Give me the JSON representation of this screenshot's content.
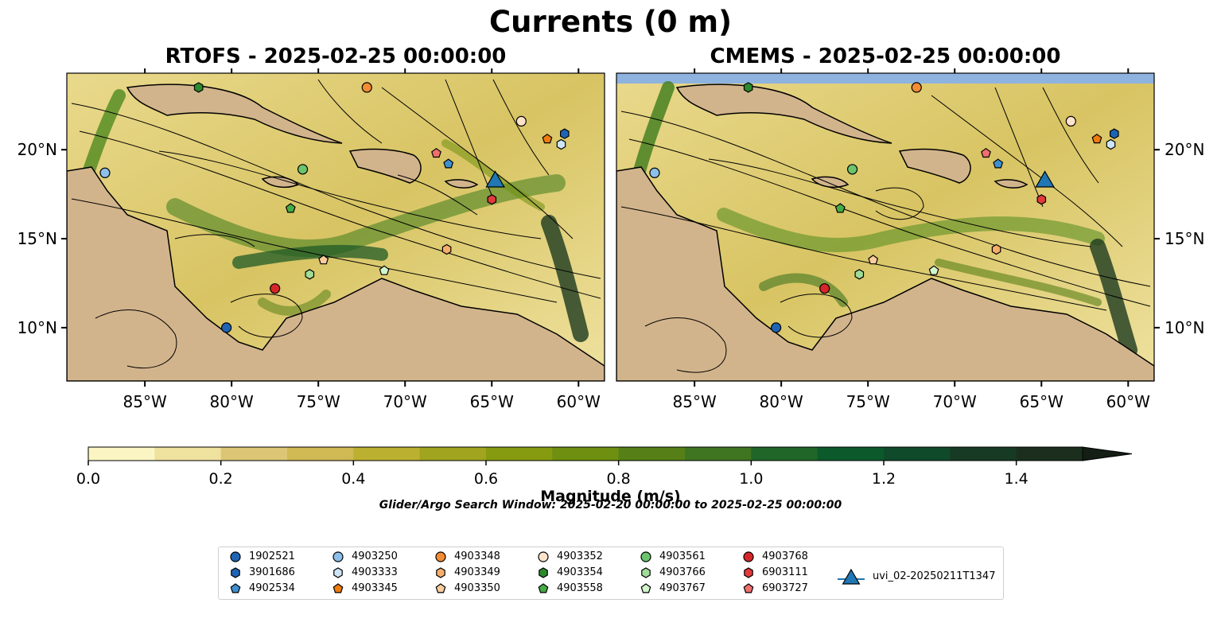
{
  "title": "Currents (0 m)",
  "panels": [
    {
      "title": "RTOFS - 2025-02-25 00:00:00"
    },
    {
      "title": "CMEMS - 2025-02-25 00:00:00"
    }
  ],
  "lat_ticks": [
    "10°N",
    "15°N",
    "20°N"
  ],
  "lon_ticks": [
    "85°W",
    "80°W",
    "75°W",
    "70°W",
    "65°W",
    "60°W"
  ],
  "colorbar": {
    "label": "Magnitude (m/s)",
    "ticks": [
      "0.0",
      "0.2",
      "0.4",
      "0.6",
      "0.8",
      "1.0",
      "1.2",
      "1.4"
    ],
    "min": 0.0,
    "max": 1.5,
    "step": 0.1,
    "extend": "max",
    "colors": [
      "#fbf5c3",
      "#efe19e",
      "#dcc676",
      "#cfb953",
      "#bbb030",
      "#a1a41f",
      "#869a10",
      "#6e8f10",
      "#567f18",
      "#3f7520",
      "#1f6628",
      "#0c5a2c",
      "#0f4a2a",
      "#173a24",
      "#1c2f1e"
    ]
  },
  "search_window": "Glider/Argo Search Window: 2025-02-20 00:00:00 to 2025-02-25 00:00:00",
  "legend": [
    {
      "label": "1902521",
      "marker": "circle",
      "color": "#1f64b4"
    },
    {
      "label": "3901686",
      "marker": "hexagon",
      "color": "#1f64b4"
    },
    {
      "label": "4902534",
      "marker": "pentagon",
      "color": "#3f8fd0"
    },
    {
      "label": "4903250",
      "marker": "circle",
      "color": "#8cc0ea"
    },
    {
      "label": "4903333",
      "marker": "hexagon",
      "color": "#cde5f7"
    },
    {
      "label": "4903345",
      "marker": "pentagon",
      "color": "#f07b0c"
    },
    {
      "label": "4903348",
      "marker": "circle",
      "color": "#f38c33"
    },
    {
      "label": "4903349",
      "marker": "hexagon",
      "color": "#f7ae6a"
    },
    {
      "label": "4903350",
      "marker": "pentagon",
      "color": "#fbcc9e"
    },
    {
      "label": "4903352",
      "marker": "circle",
      "color": "#fde3cc"
    },
    {
      "label": "4903354",
      "marker": "hexagon",
      "color": "#2c8a2c"
    },
    {
      "label": "4903558",
      "marker": "pentagon",
      "color": "#46ac46"
    },
    {
      "label": "4903561",
      "marker": "circle",
      "color": "#6cc46c"
    },
    {
      "label": "4903766",
      "marker": "hexagon",
      "color": "#9fdc98"
    },
    {
      "label": "4903767",
      "marker": "pentagon",
      "color": "#d2f5cc"
    },
    {
      "label": "4903768",
      "marker": "circle",
      "color": "#d7262a"
    },
    {
      "label": "6903111",
      "marker": "hexagon",
      "color": "#e03a3a"
    },
    {
      "label": "6903727",
      "marker": "pentagon",
      "color": "#ef6f6f"
    },
    {
      "label": "uvi_02-20250211T1347",
      "marker": "triangle",
      "color": "#1f77b4"
    }
  ],
  "observations": [
    {
      "id": "1902521",
      "lon": -80.3,
      "lat": 10.0
    },
    {
      "id": "3901686",
      "lon": -60.8,
      "lat": 20.9
    },
    {
      "id": "4902534",
      "lon": -67.5,
      "lat": 19.2
    },
    {
      "id": "4903250",
      "lon": -87.3,
      "lat": 18.7
    },
    {
      "id": "4903333",
      "lon": -61.0,
      "lat": 20.3
    },
    {
      "id": "4903345",
      "lon": -61.8,
      "lat": 20.6
    },
    {
      "id": "4903348",
      "lon": -72.2,
      "lat": 23.5
    },
    {
      "id": "4903349",
      "lon": -67.6,
      "lat": 14.4
    },
    {
      "id": "4903350",
      "lon": -74.7,
      "lat": 13.8
    },
    {
      "id": "4903352",
      "lon": -63.3,
      "lat": 21.6
    },
    {
      "id": "4903354",
      "lon": -81.9,
      "lat": 23.5
    },
    {
      "id": "4903558",
      "lon": -76.6,
      "lat": 16.7
    },
    {
      "id": "4903561",
      "lon": -75.9,
      "lat": 18.9
    },
    {
      "id": "4903766",
      "lon": -75.5,
      "lat": 13.0
    },
    {
      "id": "4903767",
      "lon": -71.2,
      "lat": 13.2
    },
    {
      "id": "4903768",
      "lon": -77.5,
      "lat": 12.2
    },
    {
      "id": "6903111",
      "lon": -65.0,
      "lat": 17.2
    },
    {
      "id": "6903727",
      "lon": -68.2,
      "lat": 19.8
    },
    {
      "id": "uvi_02-20250211T1347",
      "lon": -64.8,
      "lat": 18.2
    }
  ]
}
